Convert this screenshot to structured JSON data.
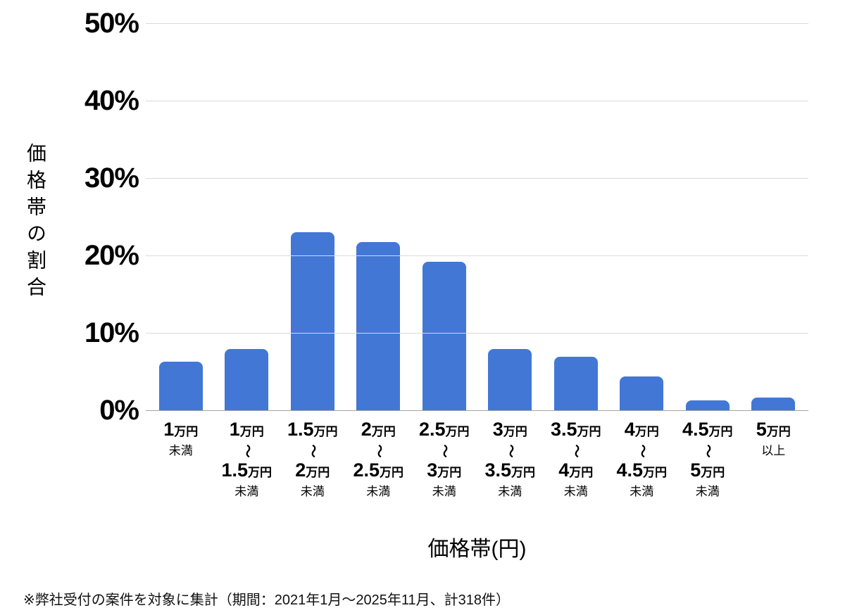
{
  "chart_data": {
    "type": "bar",
    "title": "",
    "xlabel": "価格帯(円)",
    "ylabel": "価格帯の割合",
    "ylim": [
      0,
      50
    ],
    "ytick_step": 10,
    "ytick_labels": [
      "0%",
      "10%",
      "20%",
      "30%",
      "40%",
      "50%"
    ],
    "grid": "horizontal gridlines only",
    "legend": "none",
    "bar_color": "#4277d6",
    "categories": [
      "1万円未満",
      "1万円〜1.5万円未満",
      "1.5万円〜2万円未満",
      "2万円〜2.5万円未満",
      "2.5万円〜3万円未満",
      "3万円〜3.5万円未満",
      "3.5万円〜4万円未満",
      "4万円〜4.5万円未満",
      "4.5万円〜5万円未満",
      "5万円以上"
    ],
    "values": [
      6.3,
      7.9,
      23.0,
      21.7,
      19.2,
      7.9,
      6.9,
      4.4,
      1.3,
      1.6
    ]
  },
  "x_ticks": [
    {
      "from_num": "1",
      "from_unit": "万円",
      "connector": "",
      "to_num": "",
      "to_unit": "",
      "qualifier": "未満"
    },
    {
      "from_num": "1",
      "from_unit": "万円",
      "connector": "〜",
      "to_num": "1.5",
      "to_unit": "万円",
      "qualifier": "未満"
    },
    {
      "from_num": "1.5",
      "from_unit": "万円",
      "connector": "〜",
      "to_num": "2",
      "to_unit": "万円",
      "qualifier": "未満"
    },
    {
      "from_num": "2",
      "from_unit": "万円",
      "connector": "〜",
      "to_num": "2.5",
      "to_unit": "万円",
      "qualifier": "未満"
    },
    {
      "from_num": "2.5",
      "from_unit": "万円",
      "connector": "〜",
      "to_num": "3",
      "to_unit": "万円",
      "qualifier": "未満"
    },
    {
      "from_num": "3",
      "from_unit": "万円",
      "connector": "〜",
      "to_num": "3.5",
      "to_unit": "万円",
      "qualifier": "未満"
    },
    {
      "from_num": "3.5",
      "from_unit": "万円",
      "connector": "〜",
      "to_num": "4",
      "to_unit": "万円",
      "qualifier": "未満"
    },
    {
      "from_num": "4",
      "from_unit": "万円",
      "connector": "〜",
      "to_num": "4.5",
      "to_unit": "万円",
      "qualifier": "未満"
    },
    {
      "from_num": "4.5",
      "from_unit": "万円",
      "connector": "〜",
      "to_num": "5",
      "to_unit": "万円",
      "qualifier": "未満"
    },
    {
      "from_num": "5",
      "from_unit": "万円",
      "connector": "",
      "to_num": "",
      "to_unit": "",
      "qualifier": "以上"
    }
  ],
  "footnote": "※弊社受付の案件を対象に集計（期間：2021年1月～2025年11月、計318件）"
}
